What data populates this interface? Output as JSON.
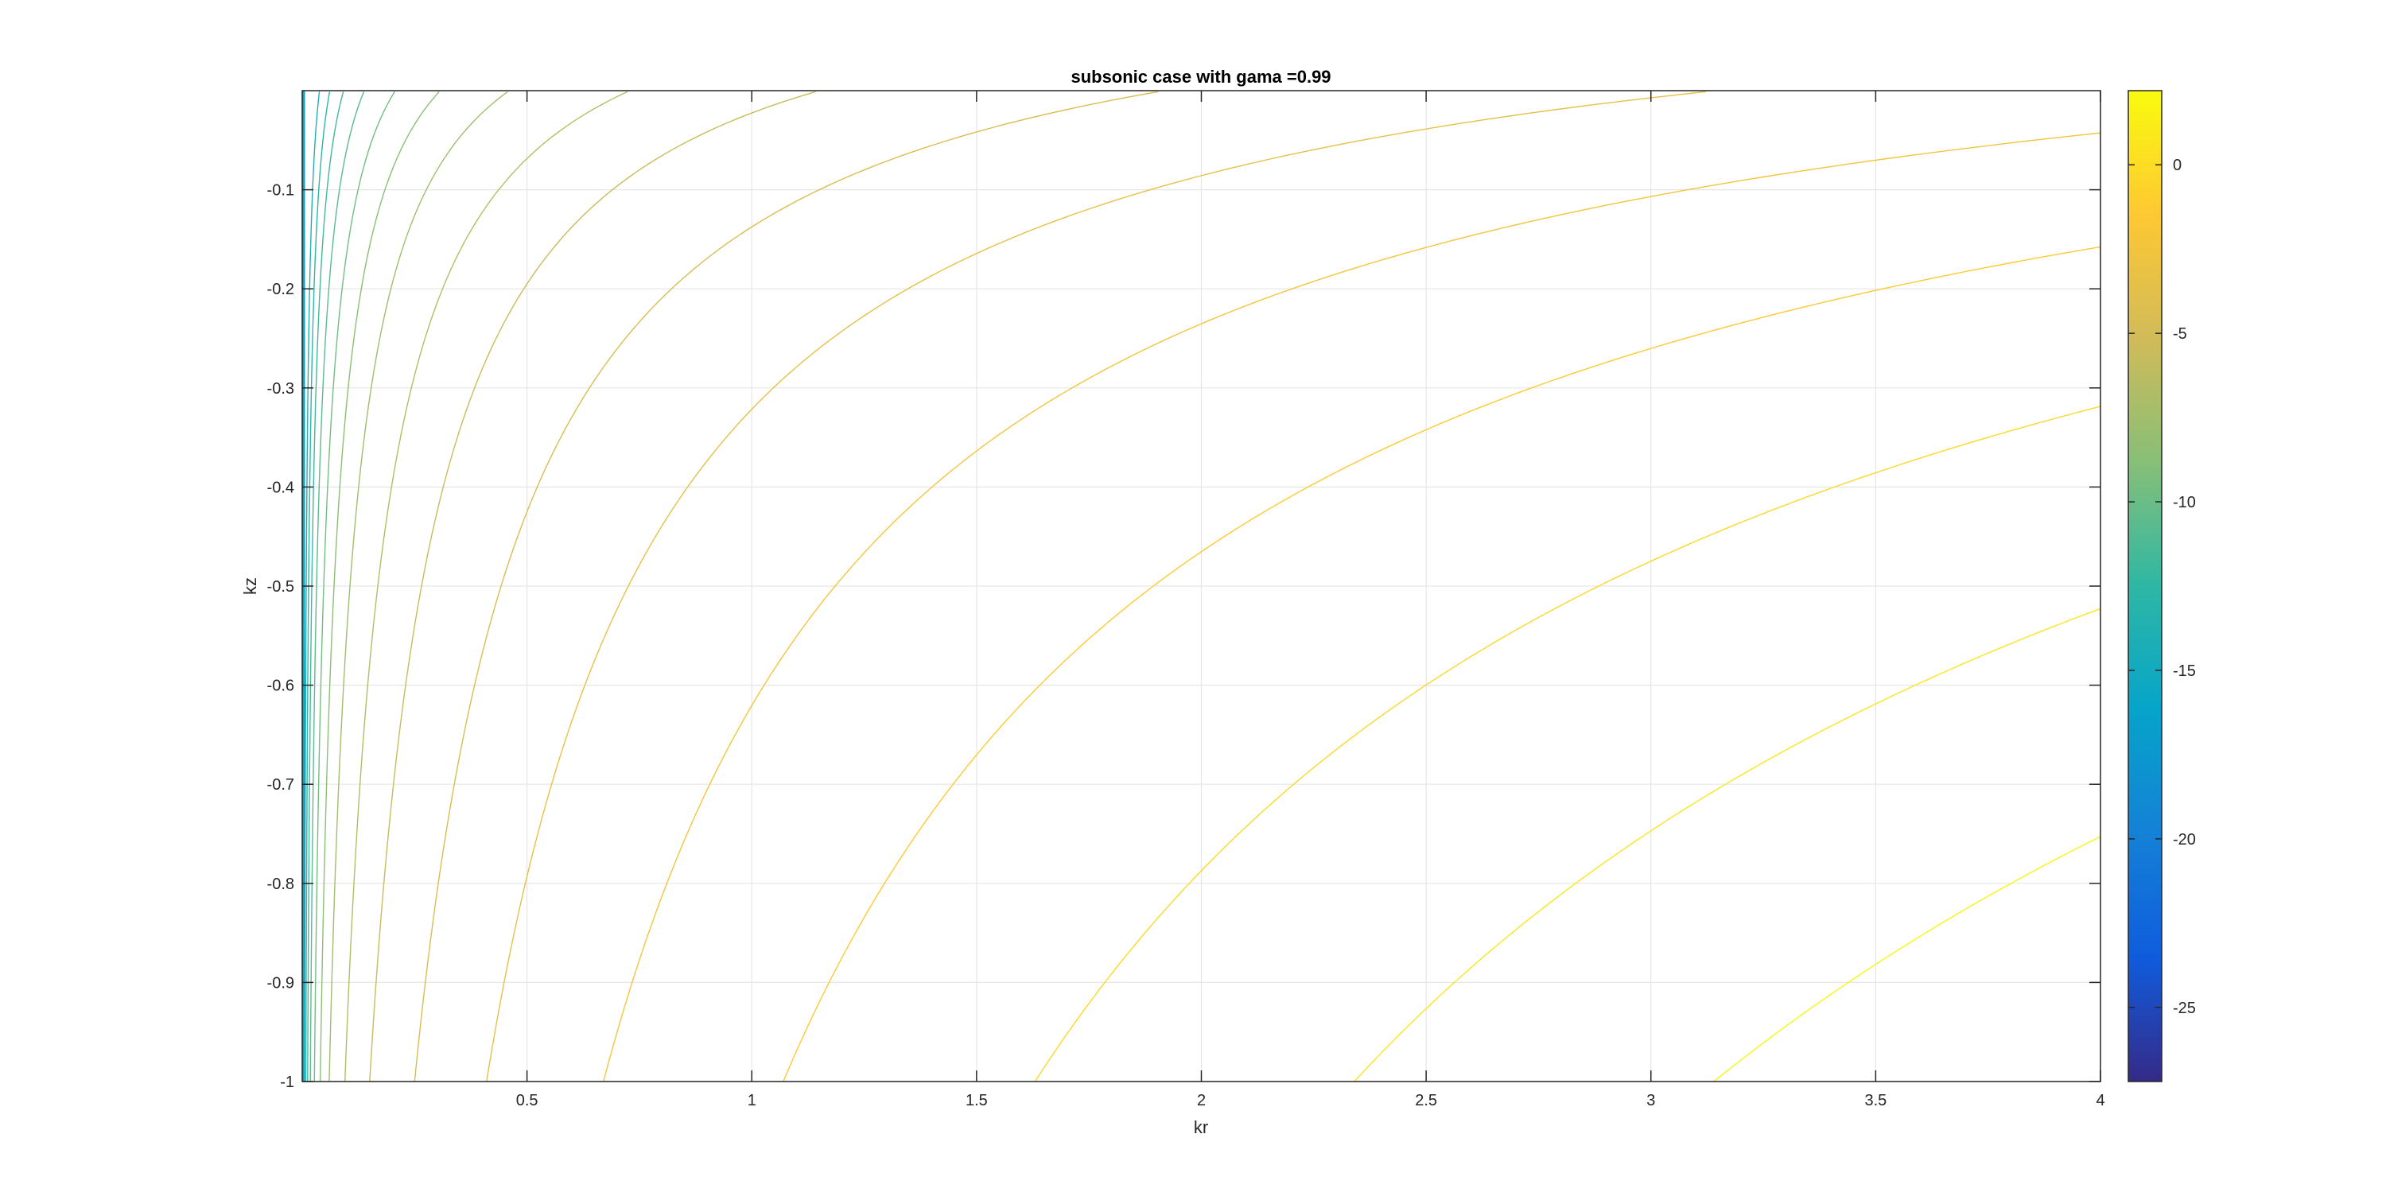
{
  "chart_data": {
    "type": "contour",
    "title": "subsonic case with gama =0.99",
    "xlabel": "kr",
    "ylabel": "kz",
    "xlim": [
      0,
      4
    ],
    "ylim": [
      -1,
      0
    ],
    "grid": true,
    "x_ticks": [
      0.5,
      1,
      1.5,
      2,
      2.5,
      3,
      3.5,
      4
    ],
    "x_tick_labels": [
      "0.5",
      "1",
      "1.5",
      "2",
      "2.5",
      "3",
      "3.5",
      "4"
    ],
    "y_ticks": [
      -0.1,
      -0.2,
      -0.3,
      -0.4,
      -0.5,
      -0.6,
      -0.7,
      -0.8,
      -0.9,
      -1
    ],
    "y_tick_labels": [
      "-0.1",
      "-0.2",
      "-0.3",
      "-0.4",
      "-0.5",
      "-0.6",
      "-0.7",
      "-0.8",
      "-0.9",
      "-1"
    ],
    "contour_levels": [
      {
        "x_at_bottom": 3.14,
        "x_at_top_edge": 4.0,
        "y_at_top_edge": -0.3
      },
      {
        "x_at_bottom": 2.34,
        "x_at_top_edge": 4.0,
        "y_at_top_edge": -0.11
      },
      {
        "x_at_bottom": 1.63,
        "x_at_top_edge": 4.0,
        "y_at_top_edge": -0.04
      },
      {
        "x_at_bottom": 1.07,
        "x_at_top_edge": 4.0,
        "y_at_top_edge": -0.01
      },
      {
        "x_at_bottom": 0.67
      },
      {
        "x_at_bottom": 0.41
      },
      {
        "x_at_bottom": 0.25
      },
      {
        "x_at_bottom": 0.15
      },
      {
        "x_at_bottom": 0.095
      },
      {
        "x_at_bottom": 0.06
      },
      {
        "x_at_bottom": 0.04
      },
      {
        "x_at_bottom": 0.027
      },
      {
        "x_at_bottom": 0.018
      },
      {
        "x_at_bottom": 0.012
      },
      {
        "x_at_bottom": 0.008
      },
      {
        "x_at_bottom": 0.005
      }
    ],
    "colorbar": {
      "range": [
        -27.2,
        2.2
      ],
      "ticks": [
        0,
        -5,
        -10,
        -15,
        -20,
        -25
      ],
      "tick_labels": [
        "0",
        "-5",
        "-10",
        "-15",
        "-20",
        "-25"
      ],
      "colormap": "parula",
      "colors": [
        "#352a87",
        "#0f5cdd",
        "#1481d6",
        "#06a4ca",
        "#2eb7a4",
        "#87bf77",
        "#d1bb59",
        "#fec832",
        "#f9fb0e"
      ]
    }
  }
}
